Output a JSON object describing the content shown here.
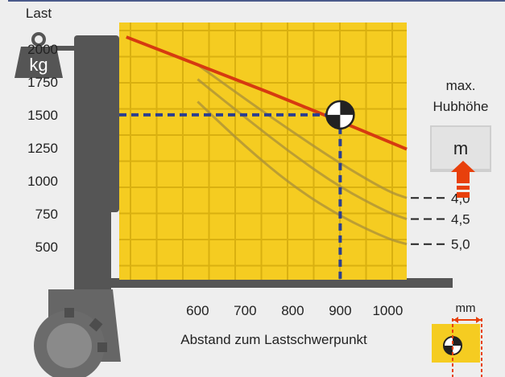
{
  "chart_data": {
    "type": "line",
    "title": "",
    "ylabel": "Last",
    "xlabel": "Abstand zum Lastschwerpunkt",
    "y_unit": "kg",
    "x_unit": "mm",
    "x_ticks": [
      "600",
      "700",
      "800",
      "900",
      "1000"
    ],
    "y_ticks": [
      "2000",
      "1750",
      "1500",
      "1250",
      "1000",
      "750",
      "500"
    ],
    "xlim": [
      435,
      1040
    ],
    "ylim": [
      250,
      2200
    ],
    "series": [
      {
        "name": "",
        "color": "#d63a10",
        "points": [
          [
            450,
            2090
          ],
          [
            600,
            1880
          ],
          [
            750,
            1670
          ],
          [
            900,
            1450
          ],
          [
            1040,
            1240
          ]
        ]
      }
    ],
    "height_curves": [
      {
        "label": "4,0",
        "points": [
          [
            600,
            1880
          ],
          [
            700,
            1620
          ],
          [
            800,
            1370
          ],
          [
            900,
            1130
          ],
          [
            1000,
            920
          ],
          [
            1040,
            870
          ]
        ]
      },
      {
        "label": "4,5",
        "points": [
          [
            600,
            1770
          ],
          [
            700,
            1480
          ],
          [
            800,
            1200
          ],
          [
            900,
            950
          ],
          [
            1000,
            760
          ],
          [
            1040,
            710
          ]
        ]
      },
      {
        "label": "5,0",
        "points": [
          [
            600,
            1600
          ],
          [
            700,
            1260
          ],
          [
            800,
            960
          ],
          [
            900,
            730
          ],
          [
            1000,
            560
          ],
          [
            1040,
            520
          ]
        ]
      }
    ],
    "marker": {
      "x": 900,
      "y": 1500
    },
    "grid": true
  },
  "labels": {
    "weight_icon": "kg",
    "max_lift_line1": "max.",
    "max_lift_line2": "Hubhöhe",
    "max_lift_unit": "m",
    "mm": "mm"
  },
  "colors": {
    "panel": "#f5cc21",
    "panel_grid": "#d9b010",
    "capacity_line": "#d63a10",
    "guide": "#2b3f8f",
    "mast": "#555555",
    "red_arrow": "#e8400c"
  }
}
